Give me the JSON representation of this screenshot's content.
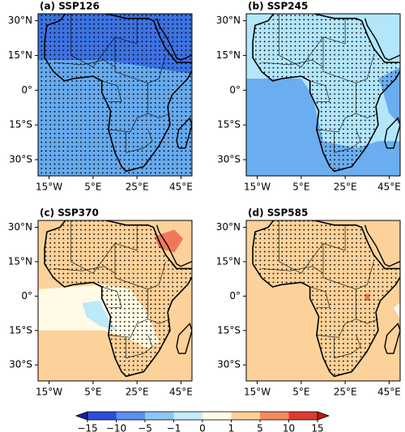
{
  "panels": [
    {
      "title": "(a) SSP126"
    },
    {
      "title": "(b) SSP245"
    },
    {
      "title": "(c) SSP370"
    },
    {
      "title": "(d) SSP585"
    }
  ],
  "y_axis_labels": [
    "30°N",
    "15°N",
    "0°",
    "15°S",
    "30°S"
  ],
  "x_axis_labels": [
    "15°W",
    "5°E",
    "25°E",
    "45°E"
  ],
  "colorbar": {
    "labels": [
      "−15",
      "−10",
      "−5",
      "−1",
      "0",
      "1",
      "5",
      "10",
      "15"
    ]
  }
}
